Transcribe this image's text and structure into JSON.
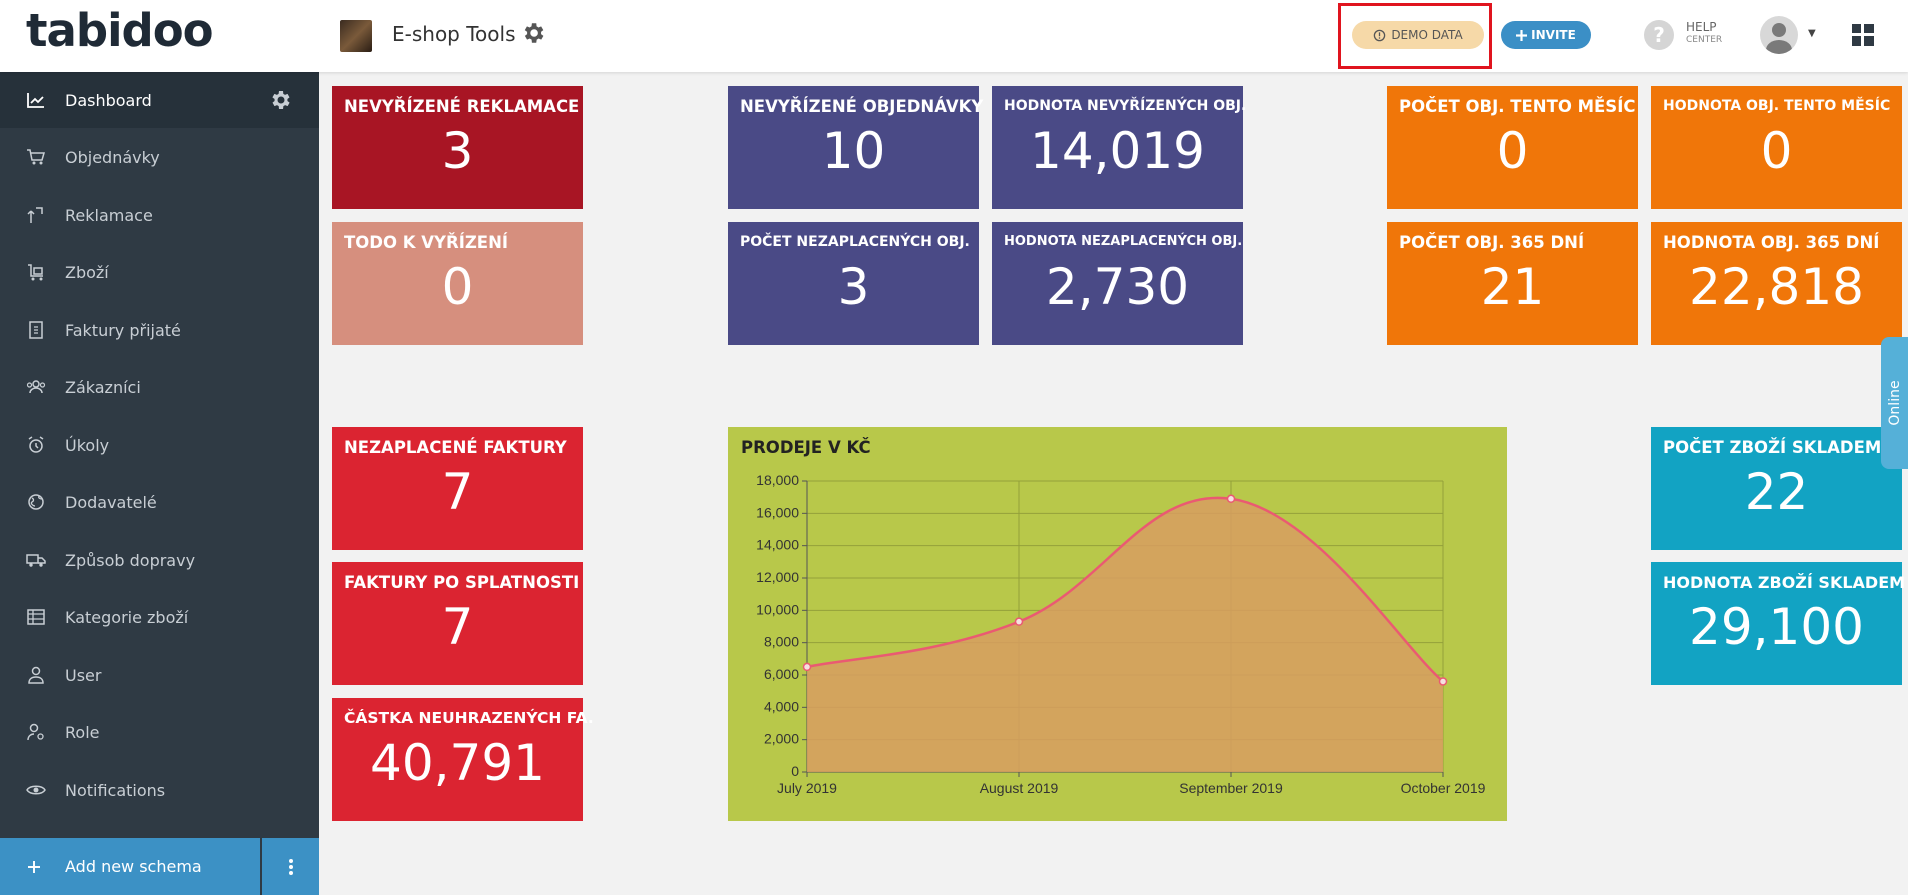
{
  "header": {
    "logo_text": "tabidoo",
    "app_title": "E-shop Tools",
    "demo_label": "DEMO DATA",
    "invite_label": "INVITE",
    "help_label": "HELP",
    "help_sub": "CENTER",
    "help_glyph": "?"
  },
  "sidebar": {
    "items": [
      {
        "label": "Dashboard",
        "icon": "chart-line-icon"
      },
      {
        "label": "Objednávky",
        "icon": "cart-icon"
      },
      {
        "label": "Reklamace",
        "icon": "return-icon"
      },
      {
        "label": "Zboží",
        "icon": "trolley-icon"
      },
      {
        "label": "Faktury přijaté",
        "icon": "invoice-icon"
      },
      {
        "label": "Zákazníci",
        "icon": "users-icon"
      },
      {
        "label": "Úkoly",
        "icon": "alarm-icon"
      },
      {
        "label": "Dodavatelé",
        "icon": "globe-icon"
      },
      {
        "label": "Způsob dopravy",
        "icon": "truck-icon"
      },
      {
        "label": "Kategorie zboží",
        "icon": "table-icon"
      },
      {
        "label": "User",
        "icon": "user-icon"
      },
      {
        "label": "Role",
        "icon": "role-icon"
      },
      {
        "label": "Notifications",
        "icon": "eye-icon"
      }
    ],
    "add_schema_label": "Add new schema"
  },
  "tiles": {
    "nevyrizene_reklamace": {
      "label": "NEVYŘÍZENÉ REKLAMACE",
      "value": "3"
    },
    "todo": {
      "label": "TODO K VYŘÍZENÍ",
      "value": "0"
    },
    "nevyrizene_objednavky": {
      "label": "NEVYŘÍZENÉ OBJEDNÁVKY",
      "value": "10"
    },
    "hodnota_nevyrizenych": {
      "label": "HODNOTA NEVYŘÍZENÝCH OBJ.",
      "value": "14,019"
    },
    "pocet_nezaplacenych": {
      "label": "POČET NEZAPLACENÝCH OBJ.",
      "value": "3"
    },
    "hodnota_nezaplacenych": {
      "label": "HODNOTA NEZAPLACENÝCH OBJ.",
      "value": "2,730"
    },
    "pocet_tento_mesic": {
      "label": "POČET OBJ. TENTO MĚSÍC",
      "value": "0"
    },
    "hodnota_tento_mesic": {
      "label": "HODNOTA OBJ. TENTO MĚSÍC",
      "value": "0"
    },
    "pocet_365": {
      "label": "POČET OBJ. 365 DNÍ",
      "value": "21"
    },
    "hodnota_365": {
      "label": "HODNOTA OBJ. 365 DNÍ",
      "value": "22,818"
    },
    "nezaplacene_faktury": {
      "label": "NEZAPLACENÉ FAKTURY",
      "value": "7"
    },
    "faktury_po_splatnosti": {
      "label": "FAKTURY PO SPLATNOSTI",
      "value": "7"
    },
    "castka_neuhrazenych": {
      "label": "ČÁSTKA NEUHRAZENÝCH FA.",
      "value": "40,791"
    },
    "pocet_zbozi_skladem": {
      "label": "POČET ZBOŽÍ SKLADEM",
      "value": "22"
    },
    "hodnota_zbozi_skladem": {
      "label": "HODNOTA ZBOŽÍ SKLADEM",
      "value": "29,100"
    }
  },
  "online_tab": "Online",
  "chart_data": {
    "type": "area",
    "title": "PRODEJE V KČ",
    "categories": [
      "July 2019",
      "August 2019",
      "September 2019",
      "October 2019"
    ],
    "series": [
      {
        "values": [
          6500,
          9300,
          16900,
          5600
        ]
      }
    ],
    "yticks": [
      "0",
      "2,000",
      "4,000",
      "6,000",
      "8,000",
      "10,000",
      "12,000",
      "14,000",
      "16,000",
      "18,000"
    ],
    "ylim": [
      0,
      18000
    ],
    "grid": true,
    "colors": {
      "line": "#ea5a72",
      "fill": "#d79e60",
      "background": "#b8c84a",
      "grid": "#93a03a"
    }
  }
}
